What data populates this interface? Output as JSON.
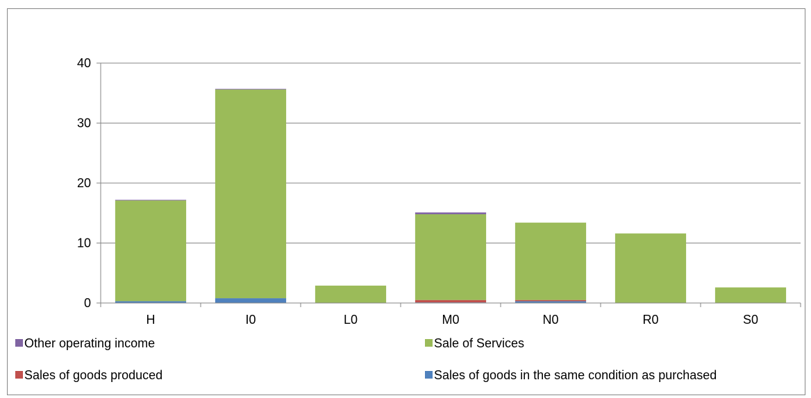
{
  "chart_data": {
    "type": "bar",
    "stacked": true,
    "categories": [
      "H",
      "I0",
      "L0",
      "M0",
      "N0",
      "R0",
      "S0"
    ],
    "series": [
      {
        "name": "Sales of goods in the same condition as purchased",
        "color": "#4f81bd",
        "values": [
          0.3,
          0.8,
          0.0,
          0.1,
          0.3,
          0.0,
          0.0
        ]
      },
      {
        "name": "Sales of goods produced",
        "color": "#c0504d",
        "values": [
          0.0,
          0.0,
          0.0,
          0.4,
          0.2,
          0.0,
          0.0
        ]
      },
      {
        "name": "Sale of Services",
        "color": "#9bbb59",
        "values": [
          16.8,
          34.8,
          2.9,
          14.3,
          12.9,
          11.6,
          2.6
        ]
      },
      {
        "name": "Other operating income",
        "color": "#8064a2",
        "values": [
          0.1,
          0.1,
          0.0,
          0.3,
          0.0,
          0.0,
          0.0
        ]
      }
    ],
    "yticks": [
      "0",
      "10",
      "20",
      "30",
      "40"
    ],
    "ylim": [
      0,
      40
    ],
    "grid": true,
    "legend": {
      "placement": "bottom",
      "order": [
        3,
        2,
        1,
        0
      ]
    }
  }
}
